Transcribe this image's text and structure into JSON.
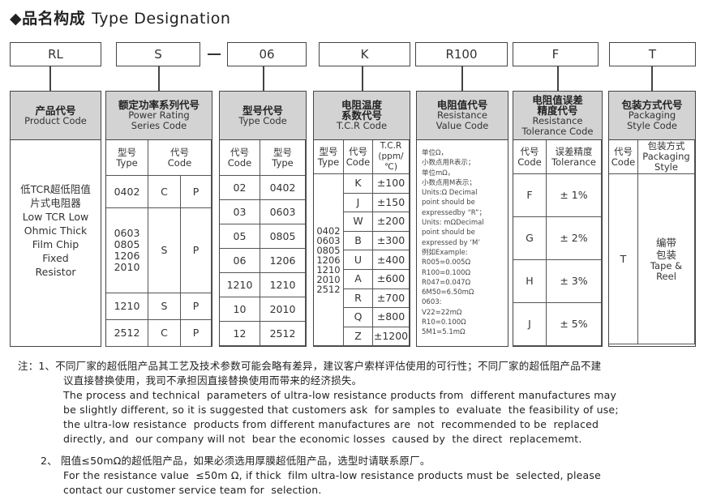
{
  "title": {
    "cn": "◆品名构成",
    "en": "Type Designation"
  },
  "codes": [
    "RL",
    "S",
    "06",
    "K",
    "R100",
    "F",
    "T"
  ],
  "product": {
    "h_cn": "产品代号",
    "h_en": "Product Code",
    "body": [
      "低TCR超低阻值",
      "片式电阻器",
      "Low TCR Low",
      "Ohmic Thick",
      "Film Chip",
      "Fixed",
      "Resistor"
    ]
  },
  "power": {
    "h_cn": "额定功率系列代号",
    "h_en1": "Power Rating",
    "h_en2": "Series Code",
    "type_cn": "型号",
    "type_en": "Type",
    "code_cn": "代号",
    "code_en": "Code",
    "rows": [
      {
        "t": "0402",
        "a": "C",
        "b": "P"
      },
      {
        "t": "0603\n0805\n1206\n2010",
        "a": "S",
        "b": "P"
      },
      {
        "t": "1210",
        "a": "S",
        "b": "P"
      },
      {
        "t": "2512",
        "a": "C",
        "b": "P"
      }
    ]
  },
  "typecode": {
    "h_cn": "型号代号",
    "h_en": "Type Code",
    "code_cn": "代号",
    "code_en": "Code",
    "type_cn": "型号",
    "type_en": "Type",
    "rows": [
      [
        "02",
        "0402"
      ],
      [
        "03",
        "0603"
      ],
      [
        "05",
        "0805"
      ],
      [
        "06",
        "1206"
      ],
      [
        "1210",
        "1210"
      ],
      [
        "10",
        "2010"
      ],
      [
        "12",
        "2512"
      ]
    ]
  },
  "tcr": {
    "h_cn1": "电阻温度",
    "h_cn2": "系数代号",
    "h_en": "T.C.R Code",
    "type_cn": "型号",
    "type_en": "Type",
    "code_cn": "代号",
    "code_en": "Code",
    "tcr_h1": "T.C.R",
    "tcr_h2": "(ppm/℃)",
    "types": "0402\n0603\n0805\n1206\n1210\n2010\n2512",
    "rows": [
      [
        "K",
        "±100"
      ],
      [
        "J",
        "±150"
      ],
      [
        "W",
        "±200"
      ],
      [
        "B",
        "±300"
      ],
      [
        "U",
        "±400"
      ],
      [
        "A",
        "±600"
      ],
      [
        "R",
        "±700"
      ],
      [
        "Q",
        "±800"
      ],
      [
        "Z",
        "±1200"
      ]
    ]
  },
  "resval": {
    "h_cn": "电阻值代号",
    "h_en1": "Resistance",
    "h_en2": "Value Code",
    "lines": [
      "单位Ω，",
      "小数点用R表示；",
      "单位mΩ，",
      "小数点用M表示；",
      "Units:Ω Decimal",
      "point should be",
      "expressedby “R”；",
      "Units: mΩDecimal",
      "point should be",
      "expressed by ‘M’",
      "例如Example:",
      "R005=0.005Ω",
      "R100=0.100Ω",
      "R047=0.047Ω",
      "6M50=6.50mΩ",
      "0603:",
      "V22=22mΩ",
      "R10=0.100Ω",
      "5M1=5.1mΩ"
    ]
  },
  "tol": {
    "h_cn1": "电阻值误差",
    "h_cn2": "精度代号",
    "h_en1": "Resistance",
    "h_en2": "Tolerance Code",
    "code_cn": "代号",
    "code_en": "Code",
    "tol_cn": "误差精度",
    "tol_en": "Tolerance",
    "rows": [
      [
        "F",
        "± 1%"
      ],
      [
        "G",
        "± 2%"
      ],
      [
        "H",
        "± 3%"
      ],
      [
        "J",
        "± 5%"
      ]
    ]
  },
  "pack": {
    "h_cn": "包装方式代号",
    "h_en1": "Packaging",
    "h_en2": "Style Code",
    "code_cn": "代号",
    "code_en": "Code",
    "style_cn": "包装方式",
    "style_en": "Packaging Style",
    "code": "T",
    "style_cn_val": "编带\n包装",
    "style_en_val": "Tape &\nReel"
  },
  "notes": {
    "n1_cn": "注：1、不同厂家的超低阻产品其工艺及技术参数可能会略有差异，建议客户索样评估使用的可行性；不同厂家的超低阻产品不建",
    "n1_cn2": "议直接替换使用，我司不承担因直接替换使用而带来的经济损失。",
    "n1_en": [
      "The process and technical  parameters of ultra-low resistance products from  different manufactures may",
      "be slightly different, so it is suggested that customers ask  for samples to  evaluate  the feasibility of use;",
      "the ultra-low resistance  products from different manufactures are  not  recommended to be  replaced",
      "directly, and  our company will not  bear the economic losses  caused by  the direct  replacememt."
    ],
    "n2_cn": "2、  阻值≤50mΩ的超低阻产品，如果必须选用厚膜超低阻产品，选型时请联系原厂。",
    "n2_en": [
      "For the resistance value  ≤50m Ω, if thick  film ultra-low resistance products must be  selected, please",
      "contact our customer service team for  selection."
    ]
  }
}
